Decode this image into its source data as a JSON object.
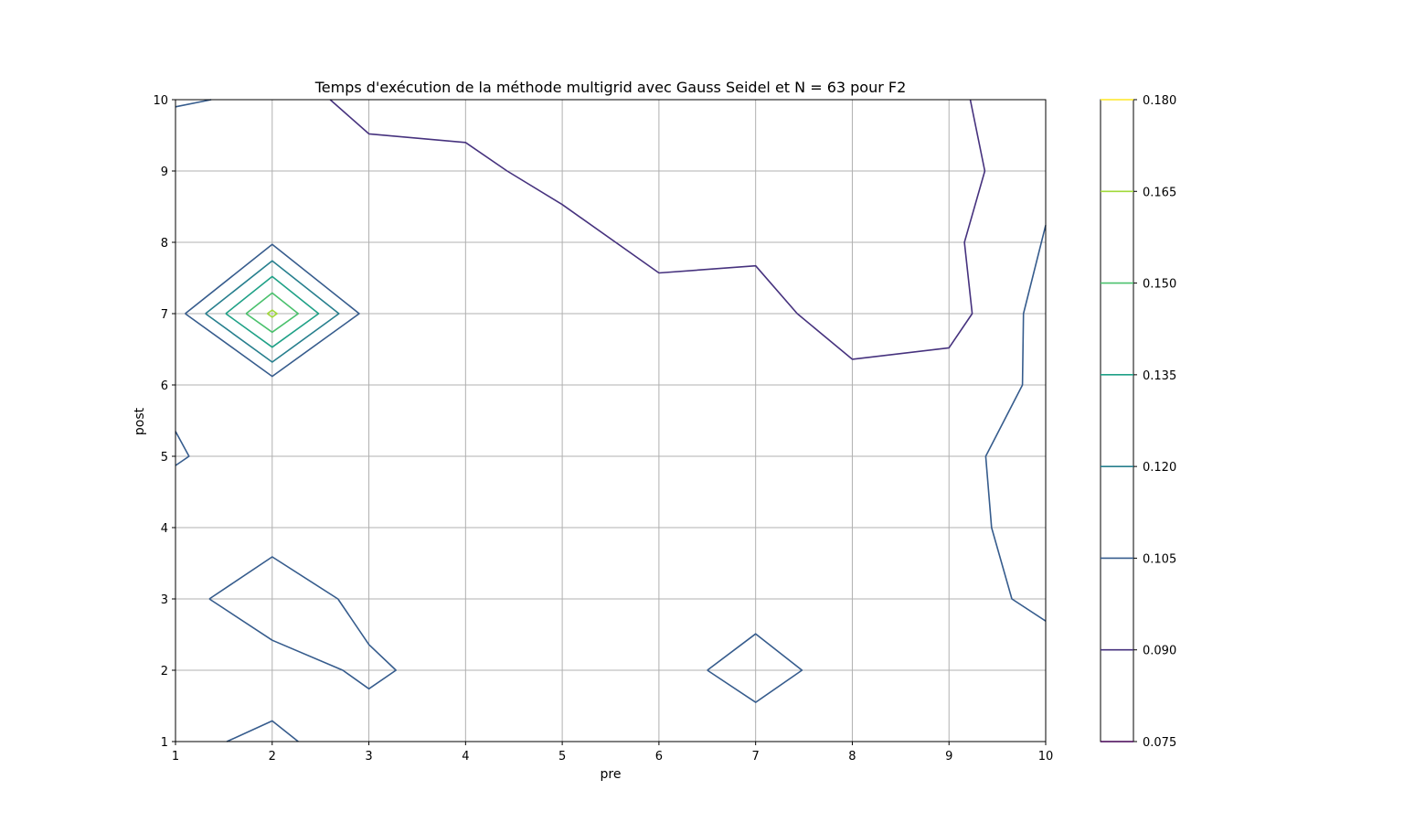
{
  "chart_data": {
    "type": "contour",
    "title": "Temps d'exécution de la méthode multigrid avec Gauss Seidel et N = 63 pour F2",
    "xlabel": "pre",
    "ylabel": "post",
    "xlim": [
      1,
      10
    ],
    "ylim": [
      1,
      10
    ],
    "x_ticks": [
      "1",
      "2",
      "3",
      "4",
      "5",
      "6",
      "7",
      "8",
      "9",
      "10"
    ],
    "y_ticks": [
      "1",
      "2",
      "3",
      "4",
      "5",
      "6",
      "7",
      "8",
      "9",
      "10"
    ],
    "grid": true,
    "colorbar": {
      "ticks": [
        "0.075",
        "0.090",
        "0.105",
        "0.120",
        "0.135",
        "0.150",
        "0.165",
        "0.180"
      ],
      "range": [
        0.075,
        0.18
      ]
    },
    "levels": [
      {
        "value": 0.075,
        "color": "#440154",
        "lines": []
      },
      {
        "value": 0.09,
        "color": "#46327e",
        "lines": [
          [
            [
              2.6,
              10
            ],
            [
              3,
              9.52
            ],
            [
              4,
              9.4
            ],
            [
              4.43,
              9
            ],
            [
              5,
              8.53
            ],
            [
              6,
              7.57
            ],
            [
              7,
              7.67
            ],
            [
              7.43,
              7
            ],
            [
              8,
              6.36
            ],
            [
              9,
              6.52
            ],
            [
              9.24,
              7
            ],
            [
              9.16,
              8
            ],
            [
              9.37,
              9
            ],
            [
              9.22,
              10
            ]
          ]
        ]
      },
      {
        "value": 0.105,
        "color": "#365c8d",
        "lines": [
          [
            [
              1,
              9.9
            ],
            [
              1.37,
              10
            ]
          ],
          [
            [
              1,
              5.35
            ],
            [
              1.14,
              5
            ],
            [
              1,
              4.87
            ]
          ],
          [
            [
              1.1,
              7
            ],
            [
              2,
              7.97
            ],
            [
              2.9,
              7
            ],
            [
              2,
              6.12
            ],
            [
              1.1,
              7
            ]
          ],
          [
            [
              1.35,
              3
            ],
            [
              2,
              3.59
            ],
            [
              2.68,
              3
            ],
            [
              3,
              2.36
            ],
            [
              3.28,
              2
            ],
            [
              3,
              1.74
            ],
            [
              2.73,
              2
            ],
            [
              2,
              2.42
            ],
            [
              1.35,
              3
            ]
          ],
          [
            [
              6.5,
              2
            ],
            [
              7,
              2.51
            ],
            [
              7.48,
              2
            ],
            [
              7,
              1.55
            ],
            [
              6.5,
              2
            ]
          ],
          [
            [
              1.53,
              1
            ],
            [
              2,
              1.29
            ],
            [
              2.27,
              1
            ]
          ],
          [
            [
              10,
              8.24
            ],
            [
              9.77,
              7
            ],
            [
              9.76,
              6
            ],
            [
              9.38,
              5
            ],
            [
              9.44,
              4
            ],
            [
              9.65,
              3
            ],
            [
              10,
              2.69
            ]
          ]
        ]
      },
      {
        "value": 0.12,
        "color": "#277f8e",
        "lines": [
          [
            [
              1.31,
              7
            ],
            [
              2,
              7.74
            ],
            [
              2.69,
              7
            ],
            [
              2,
              6.32
            ],
            [
              1.31,
              7
            ]
          ]
        ]
      },
      {
        "value": 0.135,
        "color": "#1fa187",
        "lines": [
          [
            [
              1.52,
              7
            ],
            [
              2,
              7.52
            ],
            [
              2.48,
              7
            ],
            [
              2,
              6.53
            ],
            [
              1.52,
              7
            ]
          ]
        ]
      },
      {
        "value": 0.15,
        "color": "#4ac16d",
        "lines": [
          [
            [
              1.73,
              7
            ],
            [
              2,
              7.29
            ],
            [
              2.27,
              7
            ],
            [
              2,
              6.74
            ],
            [
              1.73,
              7
            ]
          ]
        ]
      },
      {
        "value": 0.165,
        "color": "#a0da39",
        "lines": [
          [
            [
              1.95,
              7
            ],
            [
              2,
              7.05
            ],
            [
              2.05,
              7
            ],
            [
              2,
              6.95
            ],
            [
              1.95,
              7
            ]
          ]
        ]
      },
      {
        "value": 0.18,
        "color": "#fde725",
        "lines": []
      }
    ]
  }
}
